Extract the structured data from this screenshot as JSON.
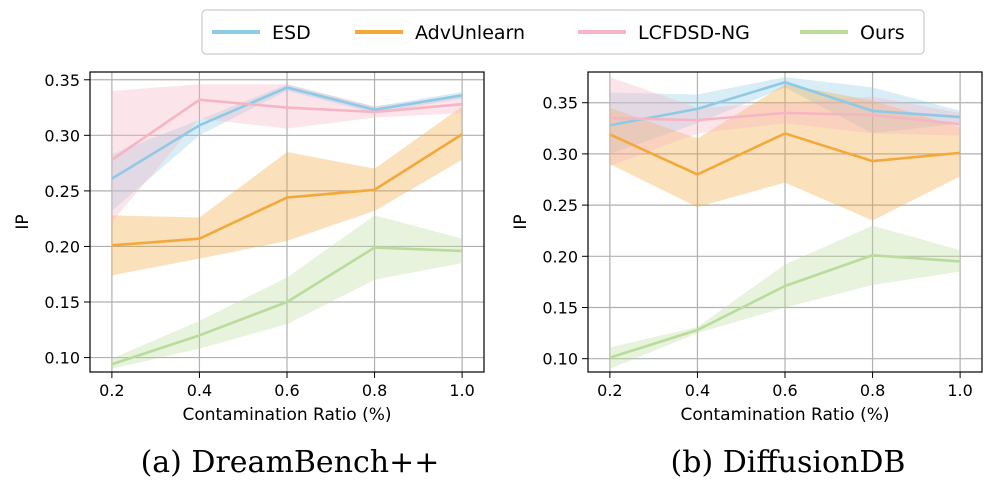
{
  "legend": {
    "entries": [
      {
        "name": "ESD",
        "color": "#8ecae6"
      },
      {
        "name": "AdvUnlearn",
        "color": "#f2a93b"
      },
      {
        "name": "LCFDSD-NG",
        "color": "#f5b5c4"
      },
      {
        "name": "Ours",
        "color": "#b9dc9a"
      }
    ]
  },
  "chart_data": [
    {
      "type": "line",
      "caption": "(a) DreamBench++",
      "xlabel": "Contamination Ratio (%)",
      "ylabel": "IP",
      "x": [
        0.2,
        0.4,
        0.6,
        0.8,
        1.0
      ],
      "xticks": [
        "0.2",
        "0.4",
        "0.6",
        "0.8",
        "1.0"
      ],
      "xlim": [
        0.15,
        1.05
      ],
      "yticks": [
        "0.10",
        "0.15",
        "0.20",
        "0.25",
        "0.30",
        "0.35"
      ],
      "ylim": [
        0.087,
        0.357
      ],
      "grid": true,
      "series": [
        {
          "name": "ESD",
          "values": [
            0.261,
            0.309,
            0.343,
            0.323,
            0.336
          ],
          "lower": [
            0.232,
            0.3,
            0.34,
            0.32,
            0.333
          ],
          "upper": [
            0.283,
            0.314,
            0.346,
            0.326,
            0.339
          ]
        },
        {
          "name": "AdvUnlearn",
          "values": [
            0.201,
            0.207,
            0.244,
            0.251,
            0.301
          ],
          "lower": [
            0.174,
            0.189,
            0.205,
            0.232,
            0.278
          ],
          "upper": [
            0.228,
            0.226,
            0.285,
            0.27,
            0.326
          ]
        },
        {
          "name": "LCFDSD-NG",
          "values": [
            0.278,
            0.332,
            0.325,
            0.321,
            0.328
          ],
          "lower": [
            0.222,
            0.315,
            0.306,
            0.316,
            0.32
          ],
          "upper": [
            0.34,
            0.346,
            0.346,
            0.326,
            0.336
          ]
        },
        {
          "name": "Ours",
          "values": [
            0.094,
            0.12,
            0.15,
            0.199,
            0.196
          ],
          "lower": [
            0.09,
            0.108,
            0.13,
            0.17,
            0.185
          ],
          "upper": [
            0.099,
            0.133,
            0.172,
            0.228,
            0.207
          ]
        }
      ]
    },
    {
      "type": "line",
      "caption": "(b) DiffusionDB",
      "xlabel": "Contamination Ratio (%)",
      "ylabel": "IP",
      "x": [
        0.2,
        0.4,
        0.6,
        0.8,
        1.0
      ],
      "xticks": [
        "0.2",
        "0.4",
        "0.6",
        "0.8",
        "1.0"
      ],
      "xlim": [
        0.15,
        1.05
      ],
      "yticks": [
        "0.10",
        "0.15",
        "0.20",
        "0.25",
        "0.30",
        "0.35"
      ],
      "ylim": [
        0.087,
        0.38
      ],
      "grid": true,
      "series": [
        {
          "name": "ESD",
          "values": [
            0.328,
            0.344,
            0.37,
            0.342,
            0.336
          ],
          "lower": [
            0.3,
            0.33,
            0.365,
            0.32,
            0.33
          ],
          "upper": [
            0.36,
            0.358,
            0.375,
            0.365,
            0.342
          ]
        },
        {
          "name": "AdvUnlearn",
          "values": [
            0.319,
            0.28,
            0.32,
            0.293,
            0.301
          ],
          "lower": [
            0.29,
            0.248,
            0.272,
            0.235,
            0.278
          ],
          "upper": [
            0.345,
            0.315,
            0.368,
            0.352,
            0.326
          ]
        },
        {
          "name": "LCFDSD-NG",
          "values": [
            0.335,
            0.333,
            0.34,
            0.338,
            0.329
          ],
          "lower": [
            0.288,
            0.32,
            0.33,
            0.32,
            0.318
          ],
          "upper": [
            0.375,
            0.345,
            0.35,
            0.356,
            0.34
          ]
        },
        {
          "name": "Ours",
          "values": [
            0.101,
            0.128,
            0.171,
            0.201,
            0.195
          ],
          "lower": [
            0.09,
            0.125,
            0.15,
            0.172,
            0.185
          ],
          "upper": [
            0.111,
            0.131,
            0.192,
            0.23,
            0.206
          ]
        }
      ]
    }
  ]
}
